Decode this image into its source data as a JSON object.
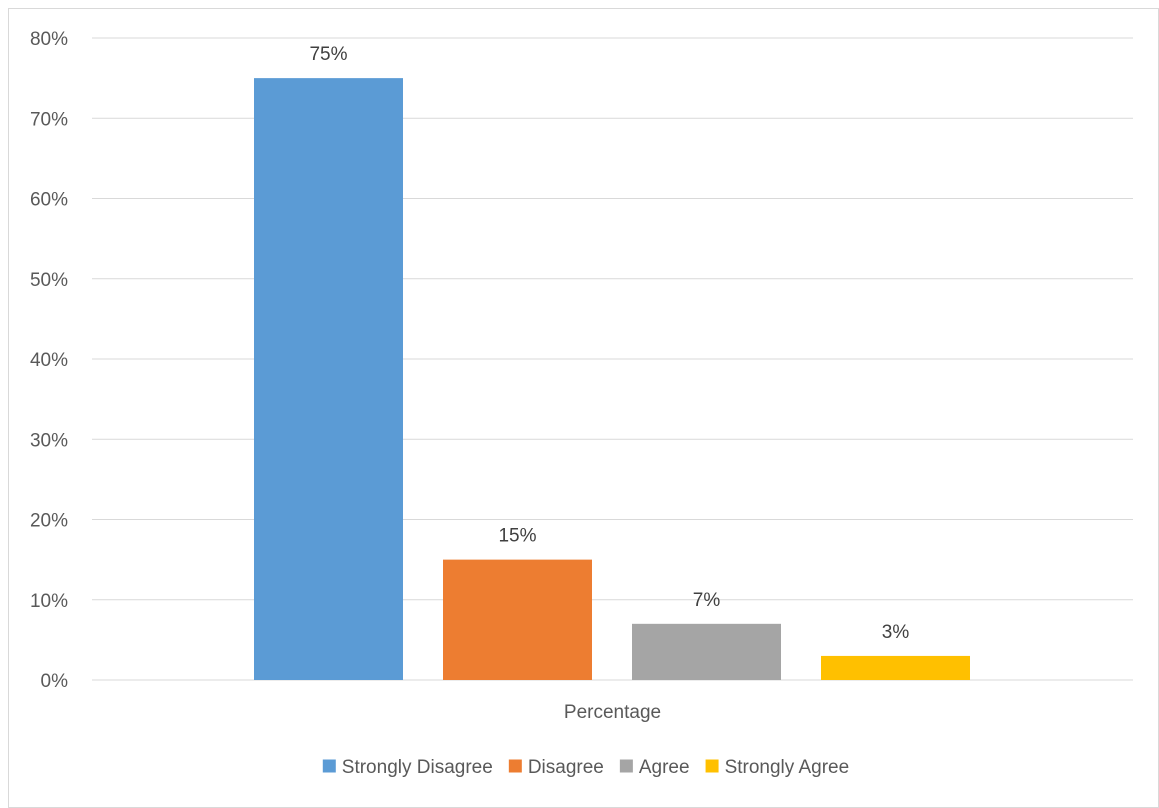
{
  "chart_data": {
    "type": "bar",
    "categories": [
      "Percentage"
    ],
    "series": [
      {
        "name": "Strongly Disagree",
        "values": [
          75
        ],
        "color": "#5B9BD5",
        "label": "75%"
      },
      {
        "name": "Disagree",
        "values": [
          15
        ],
        "color": "#ED7D31",
        "label": "15%"
      },
      {
        "name": "Agree",
        "values": [
          7
        ],
        "color": "#A5A5A5",
        "label": "7%"
      },
      {
        "name": "Strongly Agree",
        "values": [
          3
        ],
        "color": "#FFC000",
        "label": "3%"
      }
    ],
    "title": "",
    "xlabel": "",
    "ylabel": "",
    "ylim": [
      0,
      80
    ],
    "yticks": [
      "0%",
      "10%",
      "20%",
      "30%",
      "40%",
      "50%",
      "60%",
      "70%",
      "80%"
    ],
    "grid": true,
    "legend_position": "bottom",
    "gridline_color": "#d9d9d9"
  }
}
